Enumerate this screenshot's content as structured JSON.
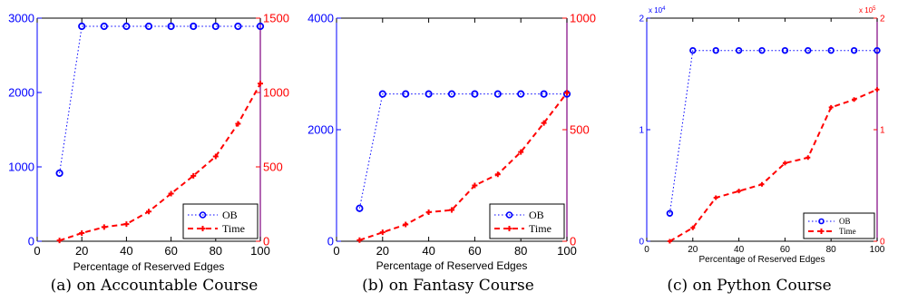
{
  "chart_data": [
    {
      "type": "line",
      "caption": "(a) on Accountable Course",
      "xlabel": "Percentage of Reserved Edges",
      "x": [
        10,
        20,
        30,
        40,
        50,
        60,
        70,
        80,
        90,
        100
      ],
      "xlim": [
        0,
        100
      ],
      "xticks": [
        0,
        20,
        40,
        60,
        80,
        100
      ],
      "y_left": {
        "lim": [
          0,
          3000
        ],
        "ticks": [
          0,
          1000,
          2000,
          3000
        ],
        "tick_labels": [
          "0",
          "1000",
          "2000",
          "3000"
        ],
        "color": "#0000ff"
      },
      "y_right": {
        "lim": [
          0,
          1500
        ],
        "ticks": [
          0,
          500,
          1000,
          1500
        ],
        "tick_labels": [
          "0",
          "500",
          "1000",
          "1500"
        ],
        "color": "#ff0000"
      },
      "series": [
        {
          "name": "OB",
          "axis": "left",
          "color": "#0000ff",
          "style": "dotted-circle",
          "values": [
            915,
            2890,
            2890,
            2890,
            2890,
            2890,
            2890,
            2890,
            2890,
            2890
          ]
        },
        {
          "name": "Time",
          "axis": "right",
          "color": "#ff0000",
          "style": "dashed-plus",
          "values": [
            5,
            55,
            95,
            115,
            200,
            320,
            440,
            570,
            790,
            1060
          ]
        }
      ],
      "legend": "bottom-right"
    },
    {
      "type": "line",
      "caption": "(b) on Fantasy Course",
      "xlabel": "Percentage of Reserved Edges",
      "x": [
        10,
        20,
        30,
        40,
        50,
        60,
        70,
        80,
        90,
        100
      ],
      "xlim": [
        0,
        100
      ],
      "xticks": [
        0,
        20,
        40,
        60,
        80,
        100
      ],
      "y_left": {
        "lim": [
          0,
          4000
        ],
        "ticks": [
          0,
          2000,
          4000
        ],
        "tick_labels": [
          "0",
          "2000",
          "4000"
        ],
        "color": "#0000ff"
      },
      "y_right": {
        "lim": [
          0,
          1000
        ],
        "ticks": [
          0,
          500,
          1000
        ],
        "tick_labels": [
          "0",
          "500",
          "1000"
        ],
        "color": "#ff0000"
      },
      "series": [
        {
          "name": "OB",
          "axis": "left",
          "color": "#0000ff",
          "style": "dotted-circle",
          "values": [
            590,
            2640,
            2640,
            2640,
            2640,
            2640,
            2640,
            2640,
            2640,
            2640
          ]
        },
        {
          "name": "Time",
          "axis": "right",
          "color": "#ff0000",
          "style": "dashed-plus",
          "values": [
            5,
            40,
            75,
            130,
            140,
            250,
            300,
            400,
            530,
            665
          ]
        }
      ],
      "legend": "bottom-right"
    },
    {
      "type": "line",
      "caption": "(c) on Python Course",
      "xlabel": "Percentage of Reserved Edges",
      "x": [
        10,
        20,
        30,
        40,
        50,
        60,
        70,
        80,
        90,
        100
      ],
      "xlim": [
        0,
        100
      ],
      "xticks": [
        0,
        20,
        40,
        60,
        80,
        100
      ],
      "y_left": {
        "lim": [
          0,
          2
        ],
        "ticks": [
          0,
          1,
          2
        ],
        "tick_labels": [
          "0",
          "1",
          "2"
        ],
        "multiplier": "x 10",
        "exponent": "4",
        "color": "#0000ff"
      },
      "y_right": {
        "lim": [
          0,
          2
        ],
        "ticks": [
          0,
          1,
          2
        ],
        "tick_labels": [
          "0",
          "1",
          "2"
        ],
        "multiplier": "x 10",
        "exponent": "5",
        "color": "#ff0000"
      },
      "series": [
        {
          "name": "OB",
          "axis": "left",
          "color": "#0000ff",
          "style": "dotted-circle",
          "values": [
            0.25,
            1.71,
            1.71,
            1.71,
            1.71,
            1.71,
            1.71,
            1.71,
            1.71,
            1.71
          ]
        },
        {
          "name": "Time",
          "axis": "right",
          "color": "#ff0000",
          "style": "dashed-plus",
          "values": [
            0.0,
            0.12,
            0.39,
            0.45,
            0.51,
            0.7,
            0.75,
            1.2,
            1.27,
            1.36
          ]
        }
      ],
      "legend": "bottom-right"
    }
  ]
}
